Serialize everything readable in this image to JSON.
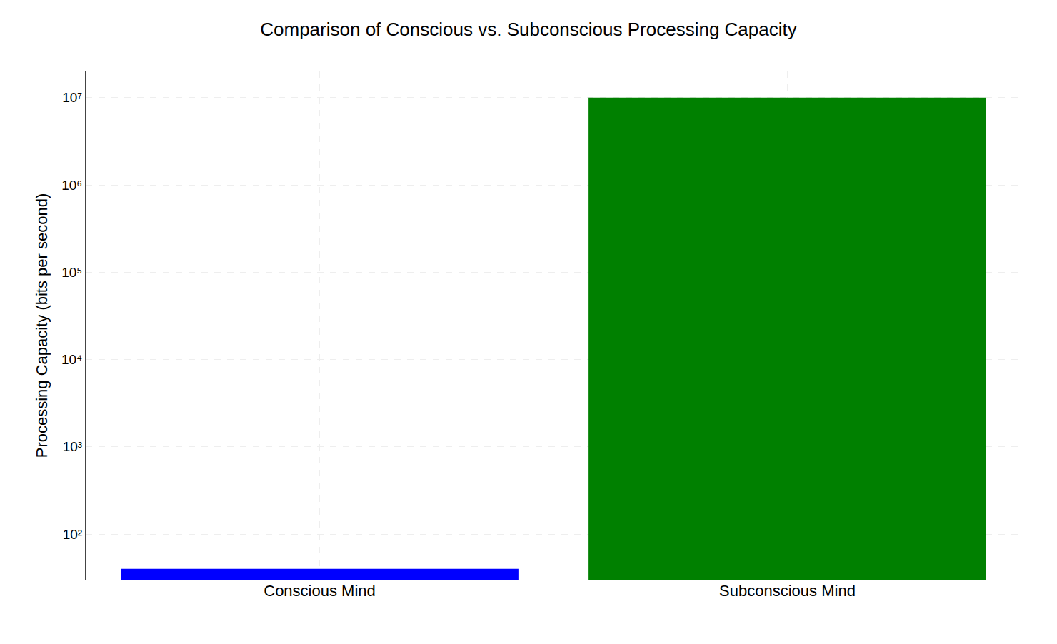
{
  "chart_data": {
    "type": "bar",
    "title": "Comparison of Conscious vs. Subconscious Processing Capacity",
    "ylabel": "Processing Capacity (bits per second)",
    "categories": [
      "Conscious Mind",
      "Subconscious Mind"
    ],
    "values": [
      40,
      10000000
    ],
    "colors": [
      "#0000ff",
      "#008000"
    ],
    "log": "y",
    "ylim": [
      30,
      20000000
    ],
    "yticks": [
      {
        "value": 100,
        "label": "10²"
      },
      {
        "value": 1000,
        "label": "10³"
      },
      {
        "value": 10000,
        "label": "10⁴"
      },
      {
        "value": 100000,
        "label": "10⁵"
      },
      {
        "value": 1000000,
        "label": "10⁶"
      },
      {
        "value": 10000000,
        "label": "10⁷"
      }
    ],
    "grid": true
  }
}
